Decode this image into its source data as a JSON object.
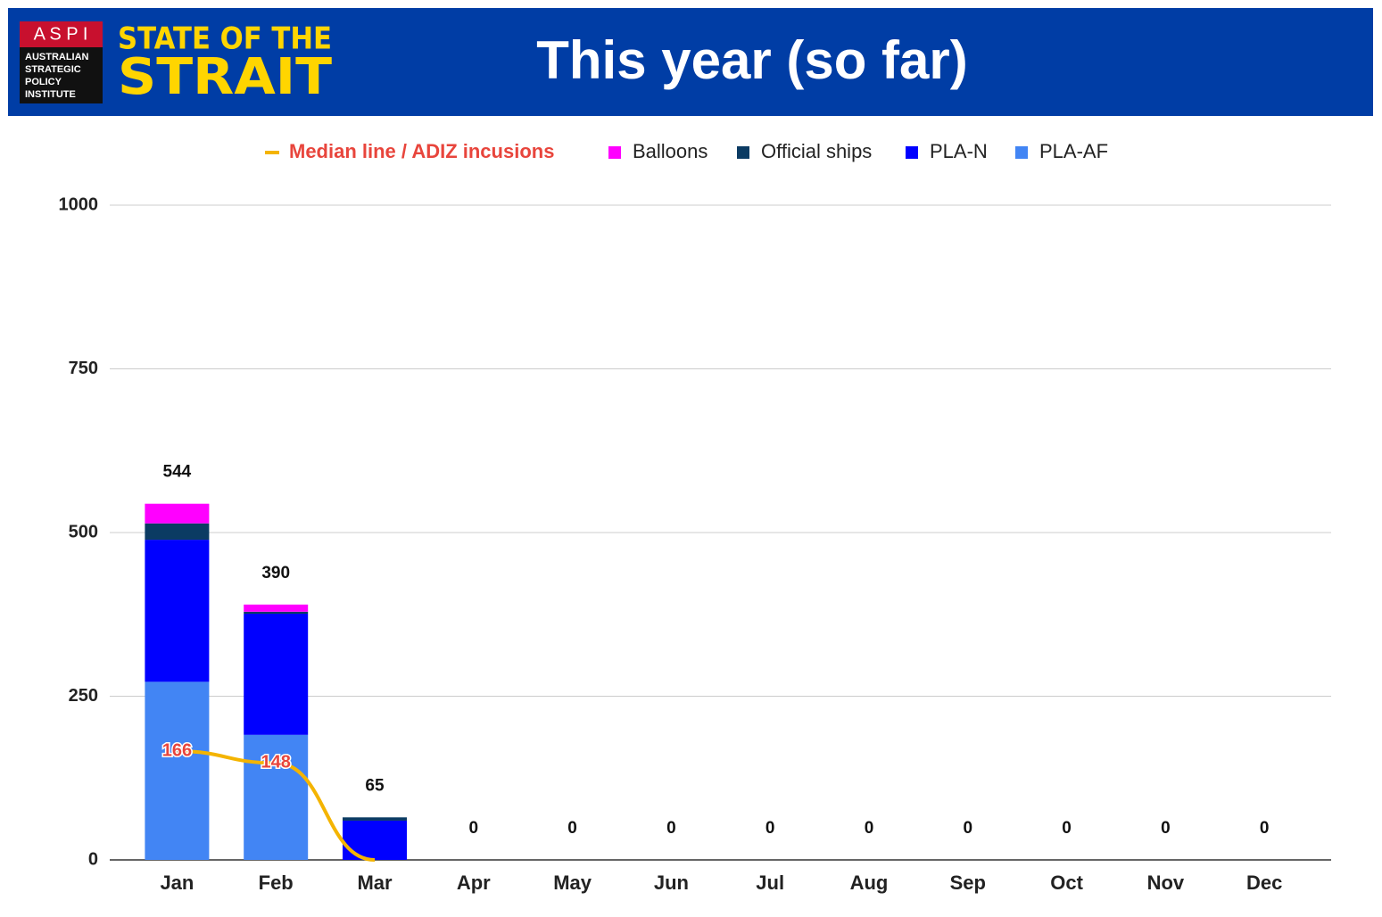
{
  "header": {
    "logo": "A S P I",
    "logo_lines": [
      "AUSTRALIAN",
      "STRATEGIC",
      "POLICY",
      "INSTITUTE"
    ],
    "brand_top": "STATE OF THE",
    "brand_bottom": "STRAIT"
  },
  "chart_data": {
    "type": "stacked_bar",
    "title": "This year (so far)",
    "categories": [
      "Jan",
      "Feb",
      "Mar",
      "Apr",
      "May",
      "Jun",
      "Jul",
      "Aug",
      "Sep",
      "Oct",
      "Nov",
      "Dec"
    ],
    "series": [
      {
        "name": "PLA-AF",
        "color": "#4285f4",
        "values": [
          272,
          191,
          0,
          0,
          0,
          0,
          0,
          0,
          0,
          0,
          0,
          0
        ]
      },
      {
        "name": "PLA-N",
        "color": "#0000ff",
        "values": [
          217,
          185,
          60,
          0,
          0,
          0,
          0,
          0,
          0,
          0,
          0,
          0
        ]
      },
      {
        "name": "Official ships",
        "color": "#0b3b63",
        "values": [
          25,
          3,
          5,
          0,
          0,
          0,
          0,
          0,
          0,
          0,
          0,
          0
        ]
      },
      {
        "name": "Balloons",
        "color": "#ff00ff",
        "values": [
          30,
          11,
          0,
          0,
          0,
          0,
          0,
          0,
          0,
          0,
          0,
          0
        ]
      }
    ],
    "totals": [
      544,
      390,
      65,
      0,
      0,
      0,
      0,
      0,
      0,
      0,
      0,
      0
    ],
    "line": {
      "name": "Median line / ADIZ incusions",
      "color": "#f4b400",
      "label_color": "#e8453c",
      "values": [
        166,
        148,
        0,
        null,
        null,
        null,
        null,
        null,
        null,
        null,
        null,
        null
      ]
    },
    "ylim": [
      0,
      1000
    ],
    "yticks": [
      0,
      250,
      500,
      750,
      1000
    ],
    "grid": true
  }
}
